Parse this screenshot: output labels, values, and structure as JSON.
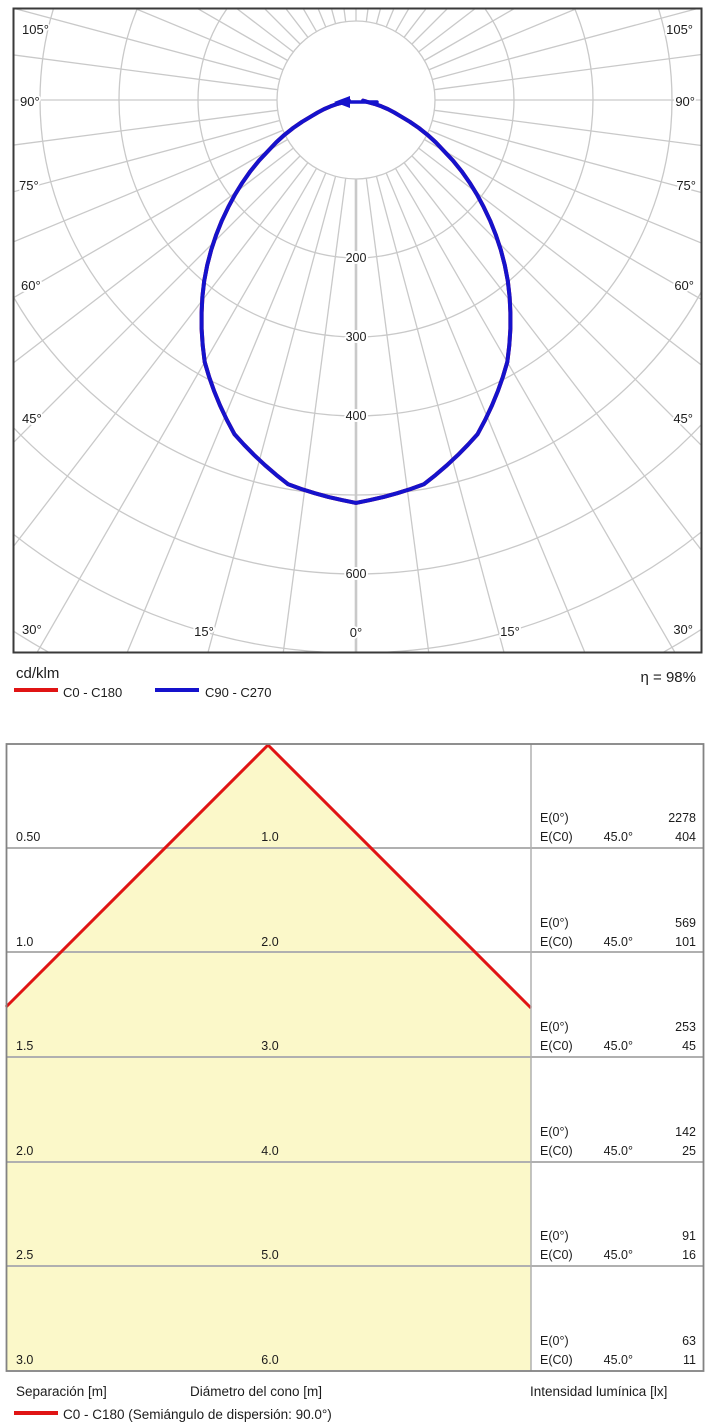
{
  "polar": {
    "unit": "cd/klm",
    "efficiency": "η = 98%",
    "legend": [
      {
        "label": "C0 - C180",
        "color": "#e01414"
      },
      {
        "label": "C90 - C270",
        "color": "#1512cc"
      }
    ],
    "ring_labels": [
      "200",
      "300",
      "400",
      "600"
    ],
    "angle_labels_left": [
      "105°",
      "90°",
      "75°",
      "60°",
      "45°",
      "30°"
    ],
    "angle_labels_right": [
      "105°",
      "90°",
      "75°",
      "60°",
      "45°",
      "30°"
    ],
    "angle_labels_bottom": [
      "15°",
      "0°",
      "15°"
    ]
  },
  "cone": {
    "labels": {
      "e0": "E(0°)",
      "ec0": "E(C0)",
      "angle": "45.0°"
    },
    "rows": [
      {
        "separation": "0.50",
        "diameter": "1.0",
        "e0": "2278",
        "ec0": "404"
      },
      {
        "separation": "1.0",
        "diameter": "2.0",
        "e0": "569",
        "ec0": "101"
      },
      {
        "separation": "1.5",
        "diameter": "3.0",
        "e0": "253",
        "ec0": "45"
      },
      {
        "separation": "2.0",
        "diameter": "4.0",
        "e0": "142",
        "ec0": "25"
      },
      {
        "separation": "2.5",
        "diameter": "5.0",
        "e0": "91",
        "ec0": "16"
      },
      {
        "separation": "3.0",
        "diameter": "6.0",
        "e0": "63",
        "ec0": "11"
      }
    ],
    "footer": {
      "separation": "Separación [m]",
      "diameter": "Diámetro del cono [m]",
      "intensity": "Intensidad lumínica [lx]"
    },
    "legend": "C0 - C180 (Semiángulo de dispersión: 90.0°)"
  },
  "chart_data": [
    {
      "type": "line",
      "subtype": "polar-photometric",
      "title": "Luminous intensity distribution",
      "units": "cd/klm",
      "efficiency_pct": 98,
      "ring_ticks": [
        100,
        200,
        300,
        400,
        500,
        600,
        700,
        800
      ],
      "labeled_rings": [
        200,
        300,
        400,
        600
      ],
      "angle_ticks_deg": [
        0,
        15,
        30,
        45,
        60,
        75,
        90,
        105
      ],
      "angle_grid_step_deg": 7.5,
      "series": [
        {
          "name": "C0 - C180",
          "color": "#e01414",
          "gamma_deg": [
            -90,
            -80,
            -70,
            -60,
            -50,
            -40,
            -30,
            -20,
            -10,
            0,
            10,
            20,
            30,
            40,
            50,
            60,
            70,
            80,
            90
          ],
          "values": [
            0,
            15,
            60,
            128,
            211,
            299,
            383,
            450,
            494,
            510,
            494,
            450,
            383,
            299,
            211,
            128,
            60,
            15,
            0
          ]
        },
        {
          "name": "C90 - C270",
          "color": "#1512cc",
          "gamma_deg": [
            -90,
            -80,
            -70,
            -60,
            -50,
            -40,
            -30,
            -20,
            -10,
            0,
            10,
            20,
            30,
            40,
            50,
            60,
            70,
            80,
            90
          ],
          "values": [
            0,
            15,
            60,
            128,
            211,
            299,
            383,
            450,
            494,
            510,
            494,
            450,
            383,
            299,
            211,
            128,
            60,
            15,
            0
          ]
        }
      ]
    },
    {
      "type": "table",
      "title": "Cone of light",
      "columns": [
        "Separación [m]",
        "Diámetro del cono [m]",
        "E(0°) [lx]",
        "E(C0) 45.0° [lx]"
      ],
      "rows": [
        [
          0.5,
          1.0,
          2278,
          404
        ],
        [
          1.0,
          2.0,
          569,
          101
        ],
        [
          1.5,
          3.0,
          253,
          45
        ],
        [
          2.0,
          4.0,
          142,
          25
        ],
        [
          2.5,
          5.0,
          91,
          16
        ],
        [
          3.0,
          6.0,
          63,
          11
        ]
      ],
      "beam_legend": "C0 - C180 (Semiángulo de dispersión: 90.0°)"
    }
  ]
}
